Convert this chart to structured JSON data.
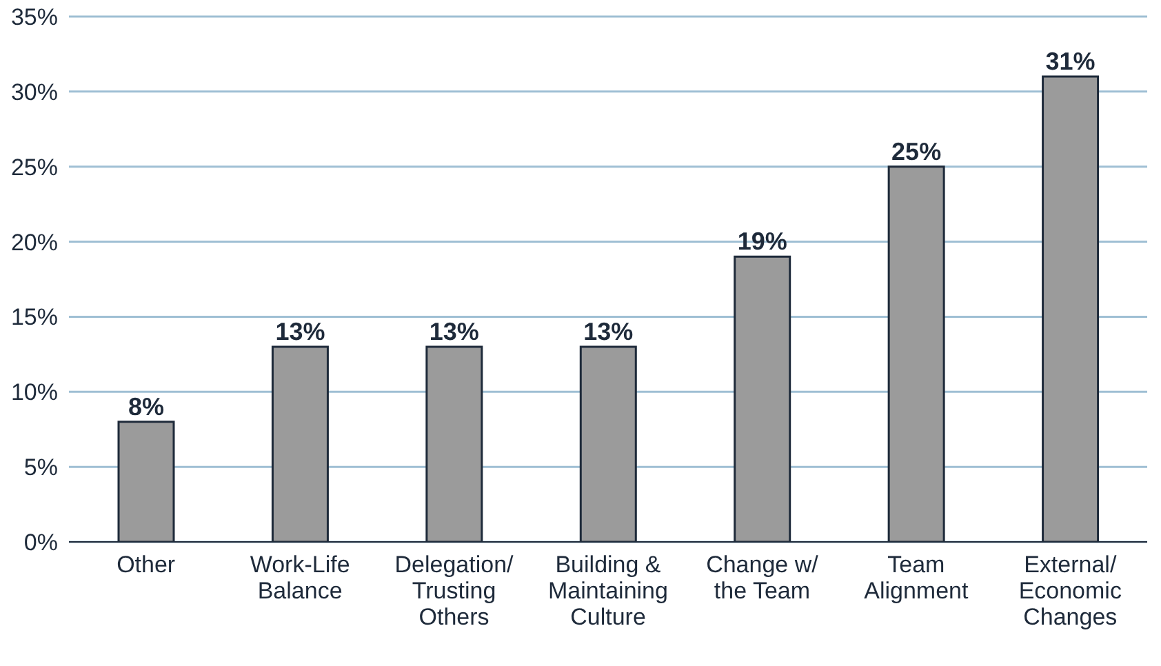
{
  "chart_data": {
    "type": "bar",
    "categories": [
      "Other",
      "Work-Life\nBalance",
      "Delegation/\nTrusting\nOthers",
      "Building &\nMaintaining\nCulture",
      "Change w/\nthe Team",
      "Team\nAlignment",
      "External/\nEconomic\nChanges"
    ],
    "values": [
      8,
      13,
      13,
      13,
      19,
      25,
      31
    ],
    "value_labels": [
      "8%",
      "13%",
      "13%",
      "13%",
      "19%",
      "25%",
      "31%"
    ],
    "color": "#9b9b9b",
    "ylim": [
      0,
      35
    ],
    "yticks": [
      {
        "value": 0,
        "label": "0%"
      },
      {
        "value": 5,
        "label": "5%"
      },
      {
        "value": 10,
        "label": "10%"
      },
      {
        "value": 15,
        "label": "15%"
      },
      {
        "value": 20,
        "label": "20%"
      },
      {
        "value": 25,
        "label": "25%"
      },
      {
        "value": 30,
        "label": "30%"
      },
      {
        "value": 35,
        "label": "35%"
      }
    ],
    "grid": "y"
  }
}
